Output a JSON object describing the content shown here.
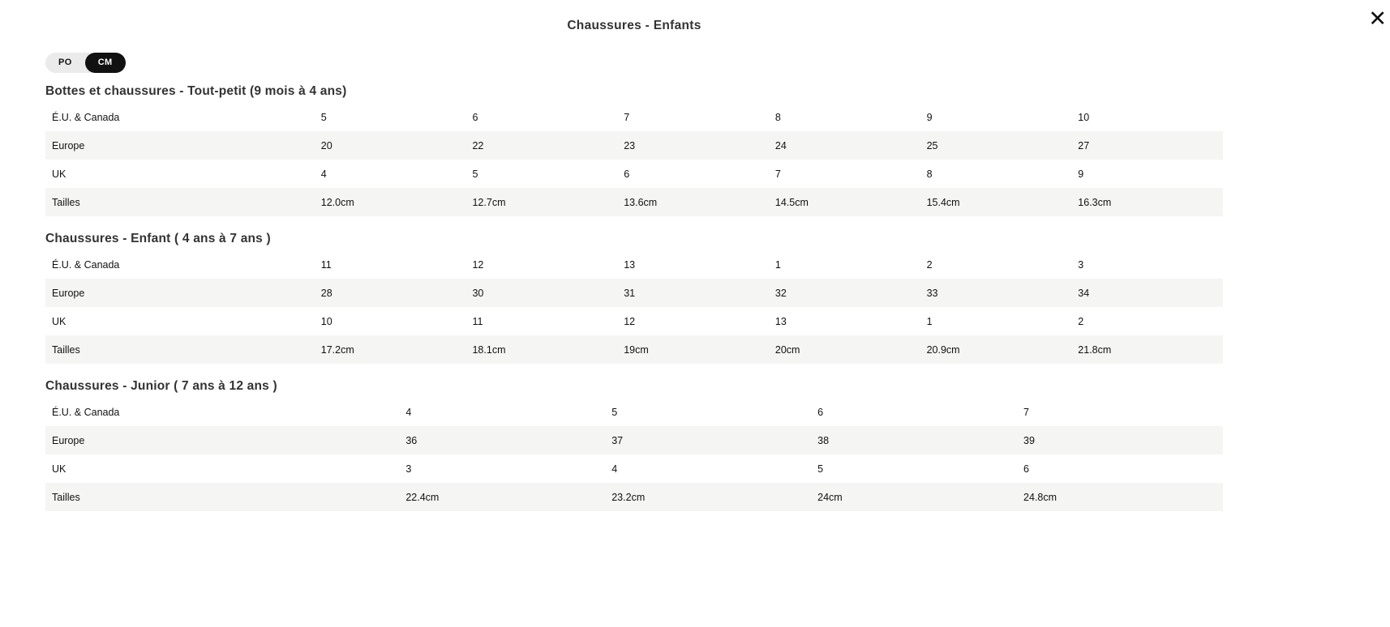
{
  "modal": {
    "title": "Chaussures - Enfants"
  },
  "icons": {
    "close": "✕"
  },
  "unit_toggle": {
    "options": [
      {
        "label": "PO"
      },
      {
        "label": "CM"
      }
    ],
    "active_option": "CM"
  },
  "colors": {
    "toggle_active_bg": "#111111",
    "toggle_bg": "#ebebeb",
    "row_stripe": "#f5f5f3",
    "heading_text": "#333333"
  },
  "sections": [
    {
      "heading": "Bottes et chaussures - Tout-petit (9 mois à 4 ans)",
      "rows": [
        {
          "label": "É.U. & Canada",
          "values": [
            "5",
            "6",
            "7",
            "8",
            "9",
            "10"
          ]
        },
        {
          "label": "Europe",
          "values": [
            "20",
            "22",
            "23",
            "24",
            "25",
            "27"
          ]
        },
        {
          "label": "UK",
          "values": [
            "4",
            "5",
            "6",
            "7",
            "8",
            "9"
          ]
        },
        {
          "label": "Tailles",
          "values": [
            "12.0cm",
            "12.7cm",
            "13.6cm",
            "14.5cm",
            "15.4cm",
            "16.3cm"
          ]
        }
      ]
    },
    {
      "heading": "Chaussures - Enfant ( 4 ans à 7 ans )",
      "rows": [
        {
          "label": "É.U. & Canada",
          "values": [
            "11",
            "12",
            "13",
            "1",
            "2",
            "3"
          ]
        },
        {
          "label": "Europe",
          "values": [
            "28",
            "30",
            "31",
            "32",
            "33",
            "34"
          ]
        },
        {
          "label": "UK",
          "values": [
            "10",
            "11",
            "12",
            "13",
            "1",
            "2"
          ]
        },
        {
          "label": "Tailles",
          "values": [
            "17.2cm",
            "18.1cm",
            "19cm",
            "20cm",
            "20.9cm",
            "21.8cm"
          ]
        }
      ]
    },
    {
      "heading": "Chaussures - Junior ( 7 ans à 12 ans )",
      "rows": [
        {
          "label": "É.U. & Canada",
          "values": [
            "4",
            "5",
            "6",
            "7"
          ]
        },
        {
          "label": "Europe",
          "values": [
            "36",
            "37",
            "38",
            "39"
          ]
        },
        {
          "label": "UK",
          "values": [
            "3",
            "4",
            "5",
            "6"
          ]
        },
        {
          "label": "Tailles",
          "values": [
            "22.4cm",
            "23.2cm",
            "24cm",
            "24.8cm"
          ]
        }
      ]
    }
  ]
}
